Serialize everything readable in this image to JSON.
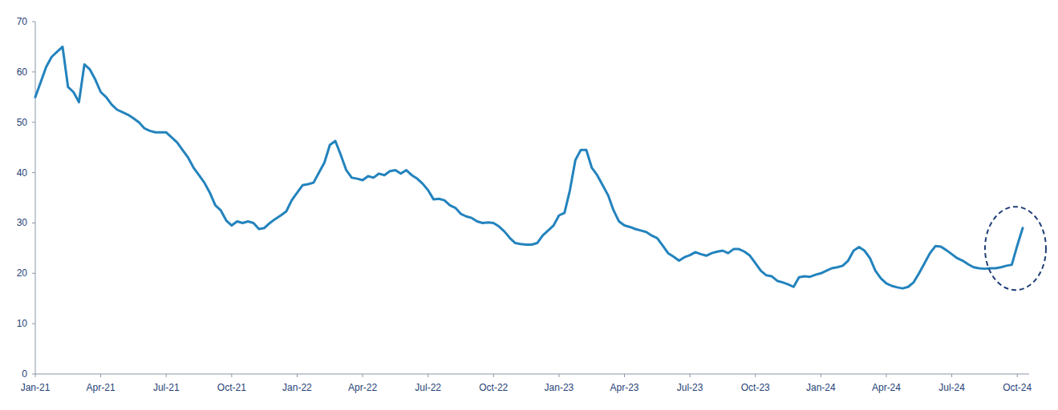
{
  "chart_data": {
    "type": "line",
    "color": "#2383bd",
    "grid": false,
    "ylim": [
      0,
      70
    ],
    "yticks": [
      0,
      10,
      20,
      30,
      40,
      50,
      60,
      70
    ],
    "categories": [
      "Jan-21",
      null,
      null,
      null,
      null,
      null,
      null,
      null,
      null,
      null,
      null,
      null,
      "Apr-21",
      null,
      null,
      null,
      null,
      null,
      null,
      null,
      null,
      null,
      null,
      null,
      "Jul-21",
      null,
      null,
      null,
      null,
      null,
      null,
      null,
      null,
      null,
      null,
      null,
      "Oct-21",
      null,
      null,
      null,
      null,
      null,
      null,
      null,
      null,
      null,
      null,
      null,
      "Jan-22",
      null,
      null,
      null,
      null,
      null,
      null,
      null,
      null,
      null,
      null,
      null,
      "Apr-22",
      null,
      null,
      null,
      null,
      null,
      null,
      null,
      null,
      null,
      null,
      null,
      "Jul-22",
      null,
      null,
      null,
      null,
      null,
      null,
      null,
      null,
      null,
      null,
      null,
      "Oct-22",
      null,
      null,
      null,
      null,
      null,
      null,
      null,
      null,
      null,
      null,
      null,
      "Jan-23",
      null,
      null,
      null,
      null,
      null,
      null,
      null,
      null,
      null,
      null,
      null,
      "Apr-23",
      null,
      null,
      null,
      null,
      null,
      null,
      null,
      null,
      null,
      null,
      null,
      "Jul-23",
      null,
      null,
      null,
      null,
      null,
      null,
      null,
      null,
      null,
      null,
      null,
      "Oct-23",
      null,
      null,
      null,
      null,
      null,
      null,
      null,
      null,
      null,
      null,
      null,
      "Jan-24",
      null,
      null,
      null,
      null,
      null,
      null,
      null,
      null,
      null,
      null,
      null,
      "Apr-24",
      null,
      null,
      null,
      null,
      null,
      null,
      null,
      null,
      null,
      null,
      null,
      "Jul-24",
      null,
      null,
      null,
      null,
      null,
      null,
      null,
      null,
      null,
      null,
      null,
      "Oct-24",
      null
    ],
    "values": [
      55,
      58,
      61,
      63,
      64,
      65,
      57,
      56,
      54,
      61.5,
      60.5,
      58.5,
      56,
      55,
      53.5,
      52.5,
      52,
      51.5,
      50.8,
      50,
      48.8,
      48.3,
      48,
      48,
      48,
      47,
      46,
      44.5,
      43,
      41,
      39.5,
      38,
      36,
      33.5,
      32.5,
      30.5,
      29.5,
      30.3,
      30,
      30.3,
      30,
      28.8,
      29,
      30,
      30.8,
      31.5,
      32.3,
      34.5,
      36,
      37.5,
      37.7,
      38,
      40,
      42,
      45.5,
      46.3,
      43.5,
      40.5,
      39,
      38.8,
      38.5,
      39.3,
      39,
      39.8,
      39.5,
      40.3,
      40.5,
      39.8,
      40.5,
      39.5,
      38.8,
      37.8,
      36.5,
      34.7,
      34.8,
      34.5,
      33.5,
      33,
      31.8,
      31.3,
      31,
      30.3,
      30,
      30.1,
      30,
      29.3,
      28.3,
      27,
      26,
      25.8,
      25.7,
      25.7,
      26,
      27.5,
      28.5,
      29.5,
      31.5,
      32,
      36.5,
      42.5,
      44.5,
      44.5,
      41,
      39.5,
      37.5,
      35.5,
      32.5,
      30.3,
      29.5,
      29.2,
      28.8,
      28.5,
      28.2,
      27.5,
      27,
      25.5,
      24,
      23.3,
      22.5,
      23.2,
      23.6,
      24.2,
      23.8,
      23.5,
      24,
      24.3,
      24.5,
      24,
      24.8,
      24.8,
      24.3,
      23.5,
      22,
      20.5,
      19.6,
      19.4,
      18.5,
      18.2,
      17.8,
      17.3,
      19.2,
      19.4,
      19.3,
      19.7,
      20,
      20.5,
      21,
      21.2,
      21.5,
      22.5,
      24.5,
      25.2,
      24.5,
      23,
      20.5,
      19,
      18,
      17.5,
      17.2,
      17,
      17.3,
      18.2,
      20,
      22,
      24,
      25.4,
      25.3,
      24.6,
      23.8,
      23,
      22.5,
      21.8,
      21.2,
      21,
      20.9,
      21,
      21,
      21.2,
      21.5,
      21.7,
      25.5,
      29
    ]
  }
}
